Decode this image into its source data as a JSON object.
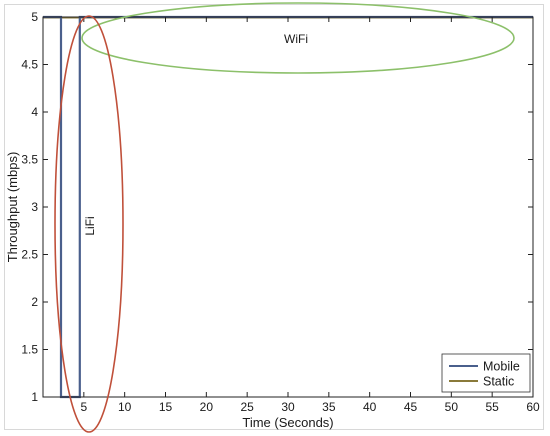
{
  "chart_data": {
    "type": "line",
    "xlabel": "Time (Seconds)",
    "ylabel": "Throughput (mbps)",
    "xlim": [
      0,
      60
    ],
    "ylim": [
      1,
      5
    ],
    "xticks": [
      5,
      10,
      15,
      20,
      25,
      30,
      35,
      40,
      45,
      50,
      55,
      60
    ],
    "yticks": [
      1,
      1.5,
      2,
      2.5,
      3,
      3.5,
      4,
      4.5,
      5
    ],
    "grid": false,
    "legend_position": "bottom-right",
    "series": [
      {
        "name": "Mobile",
        "color": "#4a5f8c",
        "x": [
          0,
          2.2,
          2.2,
          4.5,
          4.5,
          60
        ],
        "y": [
          5,
          5,
          1,
          1,
          5,
          5
        ]
      },
      {
        "name": "Static",
        "color": "#8a7a3a",
        "x": [
          0,
          60
        ],
        "y": [
          4.995,
          4.995
        ]
      }
    ],
    "annotations": [
      {
        "text": "WiFi",
        "shape": "ellipse",
        "color": "#8cc06a"
      },
      {
        "text": "LiFi",
        "shape": "ellipse",
        "color": "#c0503a"
      }
    ]
  }
}
